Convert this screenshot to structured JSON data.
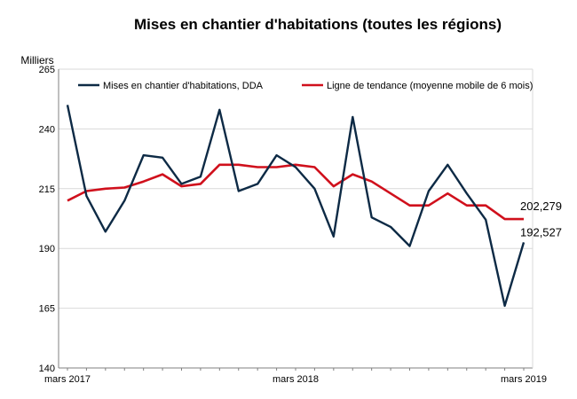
{
  "chart_data": {
    "type": "line",
    "title": "Mises en chantier d'habitations  (toutes les régions)",
    "ylabel": "Milliers",
    "ylim": [
      140,
      265
    ],
    "yticks": [
      140,
      165,
      190,
      215,
      240,
      265
    ],
    "x": [
      "2017-03",
      "2017-04",
      "2017-05",
      "2017-06",
      "2017-07",
      "2017-08",
      "2017-09",
      "2017-10",
      "2017-11",
      "2017-12",
      "2018-01",
      "2018-02",
      "2018-03",
      "2018-04",
      "2018-05",
      "2018-06",
      "2018-07",
      "2018-08",
      "2018-09",
      "2018-10",
      "2018-11",
      "2018-12",
      "2019-01",
      "2019-02",
      "2019-03"
    ],
    "xtick_labels": [
      {
        "index": 0,
        "label": "mars 2017"
      },
      {
        "index": 12,
        "label": "mars 2018"
      },
      {
        "index": 24,
        "label": "mars 2019"
      }
    ],
    "legend_position": "top",
    "series": [
      {
        "name": "Mises en chantier d'habitations, DDA",
        "color": "#0d2a45",
        "values": [
          250,
          212,
          197,
          210,
          229,
          228,
          217,
          220,
          248,
          214,
          217,
          229,
          224,
          215,
          195,
          245,
          203,
          199,
          191,
          214,
          225,
          213,
          202,
          166,
          192.527
        ]
      },
      {
        "name": "Ligne de tendance (moyenne mobile de 6 mois)",
        "color": "#d0101c",
        "values": [
          210,
          214,
          215,
          215.5,
          218,
          221,
          216,
          217,
          225,
          225,
          224,
          224,
          225,
          224,
          216,
          221,
          218,
          213,
          208,
          208,
          213,
          208,
          208,
          202.279,
          202.279
        ]
      }
    ],
    "annotations": [
      {
        "text": "202,279",
        "series": 1,
        "index": 24
      },
      {
        "text": "192,527",
        "series": 0,
        "index": 24
      }
    ],
    "grid": {
      "horizontal": true,
      "vertical": false
    }
  }
}
